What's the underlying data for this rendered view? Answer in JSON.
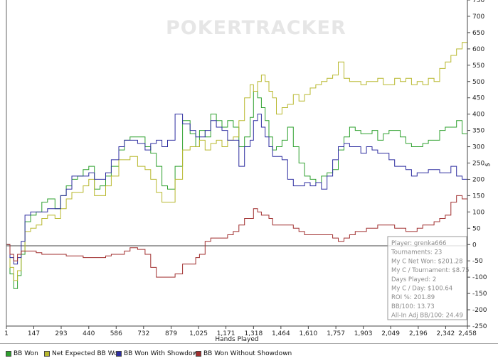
{
  "watermark": "POKERTRACKER",
  "chart_data": {
    "type": "line",
    "title": "",
    "xlabel": "Hands Played",
    "ylabel": "$",
    "xlim": [
      1,
      2458
    ],
    "ylim": [
      -250,
      750
    ],
    "x_ticks": [
      "1",
      "147",
      "293",
      "440",
      "586",
      "732",
      "879",
      "1,025",
      "1,171",
      "1,318",
      "1,464",
      "1,610",
      "1,757",
      "1,903",
      "2,049",
      "2,196",
      "2,342",
      "2,458"
    ],
    "x_tick_values": [
      1,
      147,
      293,
      440,
      586,
      732,
      879,
      1025,
      1171,
      1318,
      1464,
      1610,
      1757,
      1903,
      2049,
      2196,
      2342,
      2458
    ],
    "y_ticks": [
      750,
      700,
      650,
      600,
      550,
      500,
      450,
      400,
      350,
      300,
      250,
      200,
      150,
      100,
      50,
      0,
      -50,
      -100,
      -150,
      -200,
      -250
    ],
    "series": [
      {
        "name": "BB Won",
        "color": "#2ea02e",
        "x": [
          1,
          20,
          40,
          60,
          80,
          100,
          130,
          160,
          190,
          220,
          260,
          290,
          320,
          350,
          380,
          410,
          440,
          470,
          500,
          530,
          560,
          600,
          630,
          660,
          700,
          740,
          770,
          800,
          830,
          860,
          900,
          940,
          980,
          1010,
          1030,
          1060,
          1090,
          1120,
          1150,
          1180,
          1210,
          1240,
          1270,
          1300,
          1318,
          1340,
          1360,
          1380,
          1400,
          1420,
          1440,
          1470,
          1500,
          1530,
          1560,
          1590,
          1620,
          1650,
          1680,
          1710,
          1740,
          1770,
          1800,
          1830,
          1860,
          1890,
          1920,
          1950,
          1980,
          2010,
          2040,
          2070,
          2100,
          2130,
          2160,
          2190,
          2220,
          2250,
          2280,
          2310,
          2340,
          2370,
          2400,
          2430,
          2458
        ],
        "y": [
          0,
          -90,
          -135,
          -95,
          -30,
          70,
          90,
          100,
          130,
          140,
          110,
          150,
          180,
          200,
          210,
          230,
          240,
          170,
          180,
          210,
          240,
          290,
          320,
          330,
          330,
          300,
          280,
          240,
          180,
          170,
          240,
          380,
          340,
          300,
          350,
          330,
          400,
          380,
          360,
          380,
          360,
          300,
          330,
          390,
          470,
          450,
          420,
          380,
          330,
          290,
          300,
          320,
          360,
          300,
          250,
          210,
          200,
          190,
          210,
          220,
          230,
          290,
          330,
          360,
          350,
          340,
          340,
          350,
          320,
          340,
          350,
          350,
          330,
          310,
          300,
          300,
          310,
          320,
          320,
          350,
          360,
          360,
          380,
          340,
          370
        ]
      },
      {
        "name": "Net Expected BB Won",
        "color": "#b8b82e",
        "x": [
          1,
          20,
          40,
          60,
          80,
          100,
          130,
          160,
          190,
          220,
          260,
          290,
          320,
          350,
          380,
          410,
          440,
          470,
          500,
          530,
          560,
          600,
          630,
          660,
          700,
          740,
          770,
          800,
          830,
          860,
          900,
          940,
          980,
          1010,
          1030,
          1060,
          1090,
          1120,
          1150,
          1180,
          1210,
          1240,
          1270,
          1300,
          1318,
          1340,
          1360,
          1380,
          1400,
          1420,
          1440,
          1470,
          1500,
          1530,
          1560,
          1590,
          1620,
          1650,
          1680,
          1710,
          1740,
          1770,
          1800,
          1830,
          1860,
          1890,
          1920,
          1950,
          1980,
          2010,
          2040,
          2070,
          2100,
          2130,
          2160,
          2190,
          2220,
          2250,
          2280,
          2310,
          2340,
          2370,
          2400,
          2430,
          2458
        ],
        "y": [
          0,
          -70,
          -110,
          -80,
          -20,
          40,
          50,
          60,
          80,
          90,
          80,
          110,
          140,
          160,
          160,
          180,
          200,
          150,
          150,
          180,
          210,
          260,
          260,
          270,
          240,
          230,
          200,
          160,
          130,
          130,
          200,
          290,
          300,
          300,
          320,
          290,
          310,
          320,
          300,
          320,
          330,
          380,
          450,
          490,
          470,
          500,
          520,
          500,
          470,
          450,
          400,
          420,
          430,
          460,
          440,
          460,
          480,
          490,
          500,
          510,
          520,
          560,
          510,
          500,
          500,
          490,
          500,
          500,
          510,
          490,
          490,
          510,
          500,
          510,
          490,
          500,
          490,
          510,
          500,
          540,
          560,
          580,
          600,
          620,
          640
        ]
      },
      {
        "name": "BB Won With Showdown",
        "color": "#2e2ea0",
        "x": [
          1,
          20,
          40,
          60,
          80,
          100,
          130,
          160,
          190,
          220,
          260,
          290,
          320,
          350,
          380,
          410,
          440,
          470,
          500,
          530,
          560,
          600,
          630,
          660,
          700,
          740,
          770,
          800,
          830,
          860,
          900,
          940,
          980,
          1010,
          1030,
          1060,
          1090,
          1120,
          1150,
          1180,
          1210,
          1240,
          1270,
          1300,
          1318,
          1340,
          1360,
          1380,
          1400,
          1420,
          1440,
          1470,
          1500,
          1530,
          1560,
          1590,
          1620,
          1650,
          1680,
          1710,
          1740,
          1770,
          1800,
          1830,
          1860,
          1890,
          1920,
          1950,
          1980,
          2010,
          2040,
          2070,
          2100,
          2130,
          2160,
          2190,
          2220,
          2250,
          2280,
          2310,
          2340,
          2370,
          2400,
          2430,
          2458
        ],
        "y": [
          0,
          -40,
          -60,
          -40,
          10,
          90,
          100,
          100,
          100,
          110,
          110,
          150,
          170,
          210,
          210,
          210,
          220,
          200,
          200,
          220,
          260,
          300,
          320,
          320,
          310,
          290,
          310,
          320,
          300,
          320,
          400,
          370,
          350,
          330,
          330,
          350,
          380,
          360,
          350,
          320,
          320,
          240,
          300,
          320,
          380,
          400,
          360,
          330,
          300,
          270,
          270,
          260,
          200,
          180,
          180,
          190,
          180,
          190,
          170,
          210,
          260,
          300,
          310,
          300,
          300,
          280,
          300,
          290,
          280,
          280,
          260,
          240,
          240,
          230,
          210,
          220,
          220,
          230,
          230,
          220,
          220,
          240,
          210,
          200,
          200
        ]
      },
      {
        "name": "BB Won Without Showdown",
        "color": "#a02e2e",
        "x": [
          1,
          20,
          40,
          60,
          80,
          100,
          130,
          160,
          190,
          220,
          260,
          290,
          320,
          350,
          380,
          410,
          440,
          470,
          500,
          530,
          560,
          600,
          630,
          660,
          700,
          740,
          770,
          800,
          830,
          860,
          900,
          940,
          980,
          1010,
          1030,
          1060,
          1090,
          1120,
          1150,
          1180,
          1210,
          1240,
          1270,
          1300,
          1318,
          1340,
          1360,
          1380,
          1400,
          1420,
          1440,
          1470,
          1500,
          1530,
          1560,
          1590,
          1620,
          1650,
          1680,
          1710,
          1740,
          1770,
          1800,
          1830,
          1860,
          1890,
          1920,
          1950,
          1980,
          2010,
          2040,
          2070,
          2100,
          2130,
          2160,
          2190,
          2220,
          2250,
          2280,
          2310,
          2340,
          2370,
          2400,
          2430,
          2458
        ],
        "y": [
          0,
          -30,
          -50,
          -30,
          -20,
          -20,
          -20,
          -25,
          -30,
          -30,
          -30,
          -30,
          -35,
          -35,
          -35,
          -40,
          -40,
          -40,
          -40,
          -35,
          -30,
          -30,
          -20,
          -10,
          -15,
          -30,
          -70,
          -100,
          -100,
          -100,
          -90,
          -60,
          -60,
          -40,
          -30,
          10,
          20,
          20,
          20,
          30,
          40,
          60,
          80,
          80,
          110,
          100,
          90,
          90,
          80,
          60,
          60,
          60,
          60,
          50,
          40,
          30,
          30,
          30,
          30,
          30,
          20,
          10,
          20,
          30,
          40,
          40,
          50,
          50,
          60,
          60,
          60,
          50,
          50,
          40,
          40,
          50,
          60,
          60,
          70,
          80,
          90,
          130,
          150,
          140,
          150
        ]
      }
    ],
    "legend_position": "bottom"
  },
  "info_box": {
    "lines": [
      "Player: grenka666",
      "Tournaments: 23",
      "My C Net Won: $201.28",
      "My C / Tournament: $8.75",
      "Days Played: 2",
      "My C / Day: $100.64",
      "ROI %: 201.89",
      "BB/100: 13.73",
      "All-In Adj BB/100: 24.49"
    ]
  }
}
